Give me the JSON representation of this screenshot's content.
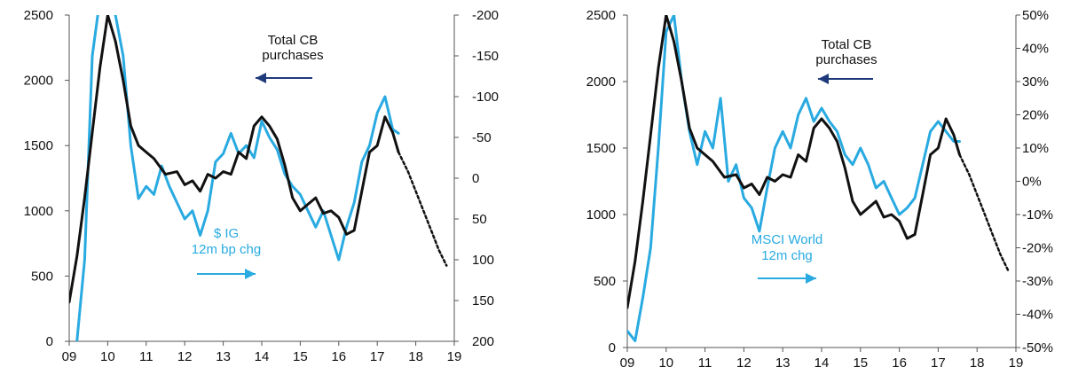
{
  "colors": {
    "cb": "#111111",
    "overlay": "#29aae1",
    "arrow_dark": "#1f3a7a",
    "axis": "#555555"
  },
  "chart_data": [
    {
      "type": "line",
      "x_ticks": [
        "09",
        "10",
        "11",
        "12",
        "13",
        "14",
        "15",
        "16",
        "17",
        "18",
        "19"
      ],
      "x_range": [
        2009,
        2019
      ],
      "left_axis": {
        "ticks": [
          "2500",
          "2000",
          "1500",
          "1000",
          "500",
          "0"
        ],
        "range": [
          0,
          2500
        ]
      },
      "right_axis": {
        "ticks": [
          "-200",
          "-150",
          "-100",
          "-50",
          "0",
          "50",
          "100",
          "150",
          "200"
        ],
        "range": [
          200,
          -200
        ],
        "inverted": true
      },
      "annotations": {
        "cb": [
          "Total CB",
          "purchases"
        ],
        "overlay": [
          "$ IG",
          "12m bp chg"
        ]
      },
      "series": [
        {
          "key": "cb",
          "axis": "left",
          "style": "solid",
          "points": [
            [
              2009.0,
              300
            ],
            [
              2009.2,
              650
            ],
            [
              2009.4,
              1100
            ],
            [
              2009.6,
              1600
            ],
            [
              2009.8,
              2100
            ],
            [
              2010.0,
              2500
            ],
            [
              2010.2,
              2300
            ],
            [
              2010.4,
              2000
            ],
            [
              2010.6,
              1650
            ],
            [
              2010.8,
              1500
            ],
            [
              2011.0,
              1450
            ],
            [
              2011.2,
              1400
            ],
            [
              2011.5,
              1280
            ],
            [
              2011.8,
              1300
            ],
            [
              2012.0,
              1200
            ],
            [
              2012.2,
              1230
            ],
            [
              2012.4,
              1150
            ],
            [
              2012.6,
              1280
            ],
            [
              2012.8,
              1250
            ],
            [
              2013.0,
              1300
            ],
            [
              2013.2,
              1280
            ],
            [
              2013.4,
              1450
            ],
            [
              2013.6,
              1400
            ],
            [
              2013.8,
              1650
            ],
            [
              2014.0,
              1720
            ],
            [
              2014.2,
              1650
            ],
            [
              2014.4,
              1550
            ],
            [
              2014.6,
              1350
            ],
            [
              2014.8,
              1100
            ],
            [
              2015.0,
              1000
            ],
            [
              2015.2,
              1050
            ],
            [
              2015.4,
              1100
            ],
            [
              2015.6,
              980
            ],
            [
              2015.8,
              1000
            ],
            [
              2016.0,
              950
            ],
            [
              2016.2,
              820
            ],
            [
              2016.4,
              850
            ],
            [
              2016.6,
              1150
            ],
            [
              2016.8,
              1450
            ],
            [
              2017.0,
              1500
            ],
            [
              2017.2,
              1720
            ],
            [
              2017.4,
              1600
            ],
            [
              2017.55,
              1450
            ]
          ]
        },
        {
          "key": "cb_proj",
          "axis": "left",
          "style": "dotted",
          "points": [
            [
              2017.55,
              1450
            ],
            [
              2017.8,
              1300
            ],
            [
              2018.0,
              1150
            ],
            [
              2018.2,
              1000
            ],
            [
              2018.4,
              850
            ],
            [
              2018.6,
              700
            ],
            [
              2018.8,
              580
            ]
          ]
        },
        {
          "key": "overlay",
          "axis": "right",
          "style": "solid",
          "points": [
            [
              2009.2,
              200
            ],
            [
              2009.4,
              100
            ],
            [
              2009.6,
              -150
            ],
            [
              2009.8,
              -220
            ],
            [
              2010.0,
              -230
            ],
            [
              2010.2,
              -200
            ],
            [
              2010.4,
              -150
            ],
            [
              2010.6,
              -40
            ],
            [
              2010.8,
              25
            ],
            [
              2011.0,
              10
            ],
            [
              2011.2,
              20
            ],
            [
              2011.4,
              -15
            ],
            [
              2011.6,
              10
            ],
            [
              2011.8,
              30
            ],
            [
              2012.0,
              50
            ],
            [
              2012.2,
              40
            ],
            [
              2012.4,
              70
            ],
            [
              2012.6,
              40
            ],
            [
              2012.8,
              -20
            ],
            [
              2013.0,
              -30
            ],
            [
              2013.2,
              -55
            ],
            [
              2013.4,
              -30
            ],
            [
              2013.6,
              -40
            ],
            [
              2013.8,
              -25
            ],
            [
              2014.0,
              -70
            ],
            [
              2014.2,
              -50
            ],
            [
              2014.4,
              -35
            ],
            [
              2014.6,
              -5
            ],
            [
              2014.8,
              10
            ],
            [
              2015.0,
              20
            ],
            [
              2015.2,
              40
            ],
            [
              2015.4,
              60
            ],
            [
              2015.6,
              40
            ],
            [
              2015.8,
              70
            ],
            [
              2016.0,
              100
            ],
            [
              2016.2,
              60
            ],
            [
              2016.4,
              30
            ],
            [
              2016.6,
              -20
            ],
            [
              2016.8,
              -40
            ],
            [
              2017.0,
              -80
            ],
            [
              2017.2,
              -100
            ],
            [
              2017.4,
              -60
            ],
            [
              2017.55,
              -55
            ]
          ]
        }
      ]
    },
    {
      "type": "line",
      "x_ticks": [
        "09",
        "10",
        "11",
        "12",
        "13",
        "14",
        "15",
        "16",
        "17",
        "18",
        "19"
      ],
      "x_range": [
        2009,
        2019
      ],
      "left_axis": {
        "ticks": [
          "2500",
          "2000",
          "1500",
          "1000",
          "500",
          "0"
        ],
        "range": [
          0,
          2500
        ]
      },
      "right_axis": {
        "ticks": [
          "50%",
          "40%",
          "30%",
          "20%",
          "10%",
          "0%",
          "-10%",
          "-20%",
          "-30%",
          "-40%",
          "-50%"
        ],
        "range": [
          -50,
          50
        ],
        "inverted": false
      },
      "annotations": {
        "cb": [
          "Total CB",
          "purchases"
        ],
        "overlay": [
          "MSCI World",
          "12m chg"
        ]
      },
      "series": [
        {
          "key": "cb",
          "axis": "left",
          "style": "solid",
          "points": [
            [
              2009.0,
              300
            ],
            [
              2009.2,
              650
            ],
            [
              2009.4,
              1100
            ],
            [
              2009.6,
              1600
            ],
            [
              2009.8,
              2100
            ],
            [
              2010.0,
              2500
            ],
            [
              2010.2,
              2300
            ],
            [
              2010.4,
              2000
            ],
            [
              2010.6,
              1650
            ],
            [
              2010.8,
              1500
            ],
            [
              2011.0,
              1450
            ],
            [
              2011.2,
              1400
            ],
            [
              2011.5,
              1280
            ],
            [
              2011.8,
              1300
            ],
            [
              2012.0,
              1200
            ],
            [
              2012.2,
              1230
            ],
            [
              2012.4,
              1150
            ],
            [
              2012.6,
              1280
            ],
            [
              2012.8,
              1250
            ],
            [
              2013.0,
              1300
            ],
            [
              2013.2,
              1280
            ],
            [
              2013.4,
              1450
            ],
            [
              2013.6,
              1400
            ],
            [
              2013.8,
              1650
            ],
            [
              2014.0,
              1720
            ],
            [
              2014.2,
              1650
            ],
            [
              2014.4,
              1550
            ],
            [
              2014.6,
              1350
            ],
            [
              2014.8,
              1100
            ],
            [
              2015.0,
              1000
            ],
            [
              2015.2,
              1050
            ],
            [
              2015.4,
              1100
            ],
            [
              2015.6,
              980
            ],
            [
              2015.8,
              1000
            ],
            [
              2016.0,
              950
            ],
            [
              2016.2,
              820
            ],
            [
              2016.4,
              850
            ],
            [
              2016.6,
              1150
            ],
            [
              2016.8,
              1450
            ],
            [
              2017.0,
              1500
            ],
            [
              2017.2,
              1720
            ],
            [
              2017.4,
              1600
            ],
            [
              2017.55,
              1450
            ]
          ]
        },
        {
          "key": "cb_proj",
          "axis": "left",
          "style": "dotted",
          "points": [
            [
              2017.55,
              1450
            ],
            [
              2017.8,
              1300
            ],
            [
              2018.0,
              1150
            ],
            [
              2018.2,
              1000
            ],
            [
              2018.4,
              850
            ],
            [
              2018.6,
              700
            ],
            [
              2018.8,
              580
            ]
          ]
        },
        {
          "key": "overlay",
          "axis": "right",
          "style": "solid",
          "points": [
            [
              2009.0,
              -45
            ],
            [
              2009.2,
              -48
            ],
            [
              2009.4,
              -35
            ],
            [
              2009.6,
              -20
            ],
            [
              2009.8,
              10
            ],
            [
              2010.0,
              45
            ],
            [
              2010.2,
              50
            ],
            [
              2010.4,
              30
            ],
            [
              2010.6,
              15
            ],
            [
              2010.8,
              5
            ],
            [
              2011.0,
              15
            ],
            [
              2011.2,
              10
            ],
            [
              2011.4,
              25
            ],
            [
              2011.6,
              0
            ],
            [
              2011.8,
              5
            ],
            [
              2012.0,
              -5
            ],
            [
              2012.2,
              -8
            ],
            [
              2012.4,
              -15
            ],
            [
              2012.6,
              -2
            ],
            [
              2012.8,
              10
            ],
            [
              2013.0,
              15
            ],
            [
              2013.2,
              10
            ],
            [
              2013.4,
              20
            ],
            [
              2013.6,
              25
            ],
            [
              2013.8,
              18
            ],
            [
              2014.0,
              22
            ],
            [
              2014.2,
              18
            ],
            [
              2014.4,
              15
            ],
            [
              2014.6,
              8
            ],
            [
              2014.8,
              5
            ],
            [
              2015.0,
              10
            ],
            [
              2015.2,
              5
            ],
            [
              2015.4,
              -2
            ],
            [
              2015.6,
              0
            ],
            [
              2015.8,
              -5
            ],
            [
              2016.0,
              -10
            ],
            [
              2016.2,
              -8
            ],
            [
              2016.4,
              -5
            ],
            [
              2016.6,
              5
            ],
            [
              2016.8,
              15
            ],
            [
              2017.0,
              18
            ],
            [
              2017.2,
              15
            ],
            [
              2017.4,
              12
            ],
            [
              2017.55,
              12
            ]
          ]
        }
      ]
    }
  ]
}
